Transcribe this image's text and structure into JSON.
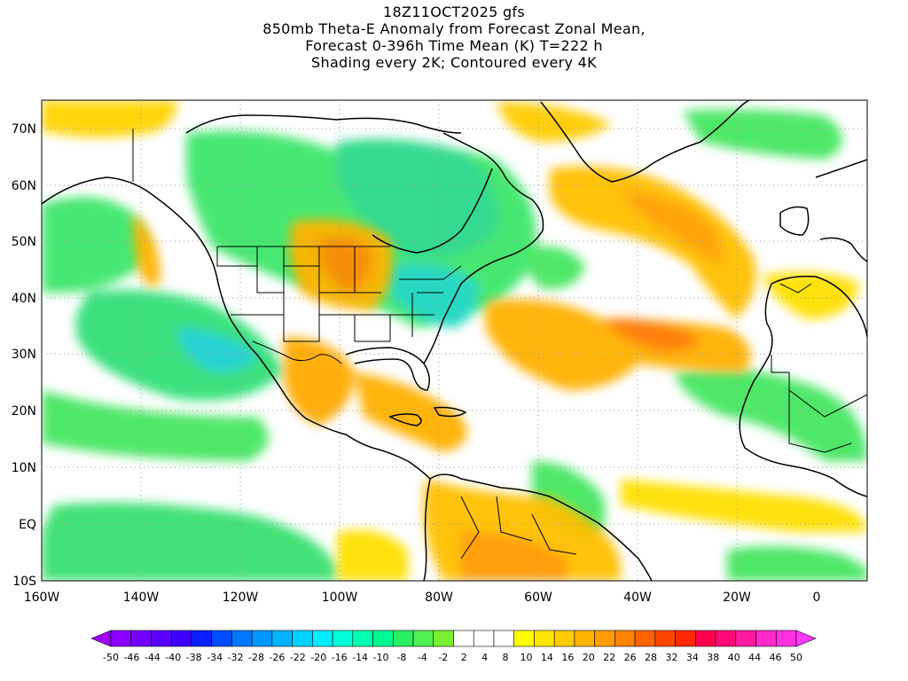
{
  "title": {
    "line1": "18Z11OCT2025 gfs",
    "line2": "850mb Theta-E Anomaly from Forecast Zonal Mean,",
    "line3": "Forecast 0-396h Time Mean (K) T=222 h",
    "line4": "Shading every 2K; Contoured every 4K"
  },
  "map": {
    "lat_labels": [
      "70N",
      "60N",
      "50N",
      "40N",
      "30N",
      "20N",
      "10N",
      "EQ",
      "10S"
    ],
    "lon_labels": [
      "160W",
      "140W",
      "120W",
      "100W",
      "80W",
      "60W",
      "40W",
      "20W",
      "0"
    ]
  },
  "colorbar": {
    "labels": [
      "-50",
      "-46",
      "-44",
      "-40",
      "-38",
      "-34",
      "-32",
      "-28",
      "-26",
      "-22",
      "-20",
      "-16",
      "-14",
      "-10",
      "-8",
      "-4",
      "-2",
      "2",
      "4",
      "8",
      "10",
      "14",
      "16",
      "20",
      "22",
      "26",
      "28",
      "32",
      "34",
      "38",
      "40",
      "44",
      "46",
      "50"
    ],
    "colors": [
      "#a000ff",
      "#8c00ff",
      "#7300ff",
      "#5a00ff",
      "#3c00ff",
      "#0a1eff",
      "#004cff",
      "#0078ff",
      "#0096ff",
      "#00b4ff",
      "#00d2ff",
      "#00ecff",
      "#00ffd8",
      "#00ffb0",
      "#00f890",
      "#28f060",
      "#50f050",
      "#78f030",
      "#ffffff",
      "#ffffff",
      "#ffffff",
      "#ffff00",
      "#ffe600",
      "#ffcc00",
      "#ffb400",
      "#ff9b00",
      "#ff8200",
      "#ff6400",
      "#ff4600",
      "#ff2800",
      "#ff0050",
      "#ff0a78",
      "#ff1aa0",
      "#ff28c8",
      "#ff30e0",
      "#ff38ff"
    ]
  }
}
